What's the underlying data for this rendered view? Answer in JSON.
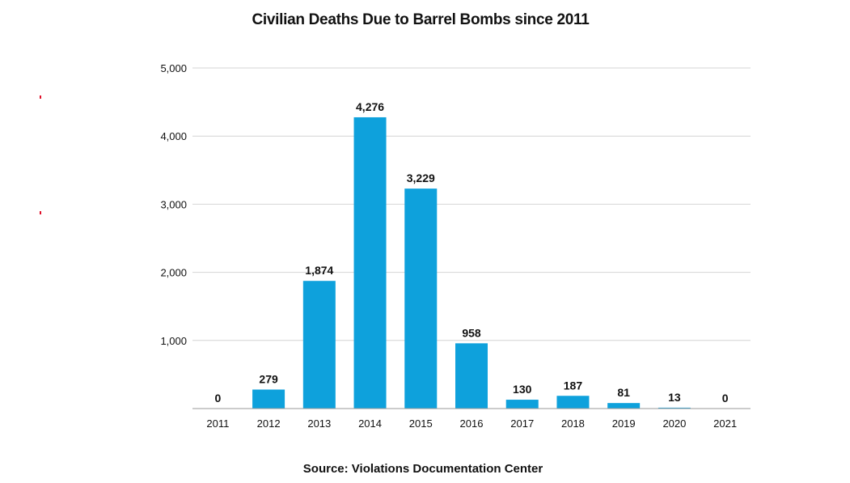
{
  "chart_data": {
    "type": "bar",
    "title": "Civilian Deaths Due to Barrel Bombs since 2011",
    "source": "Source: Violations Documentation Center",
    "xlabel": "",
    "ylabel": "",
    "categories": [
      "2011",
      "2012",
      "2013",
      "2014",
      "2015",
      "2016",
      "2017",
      "2018",
      "2019",
      "2020",
      "2021"
    ],
    "values": [
      0,
      279,
      1874,
      4276,
      3229,
      958,
      130,
      187,
      81,
      13,
      0
    ],
    "value_labels": [
      "0",
      "279",
      "1,874",
      "4,276",
      "3,229",
      "958",
      "130",
      "187",
      "81",
      "13",
      "0"
    ],
    "ylim": [
      0,
      5000
    ],
    "yticks": [
      1000,
      2000,
      3000,
      4000,
      5000
    ],
    "ytick_labels": [
      "1,000",
      "2,000",
      "3,000",
      "4,000",
      "5,000"
    ],
    "grid": true,
    "legend": "none",
    "colors": {
      "bar": "#0ea1dc",
      "grid": "#d4d4d4",
      "text": "#111111",
      "marker": "#e0102a"
    }
  }
}
